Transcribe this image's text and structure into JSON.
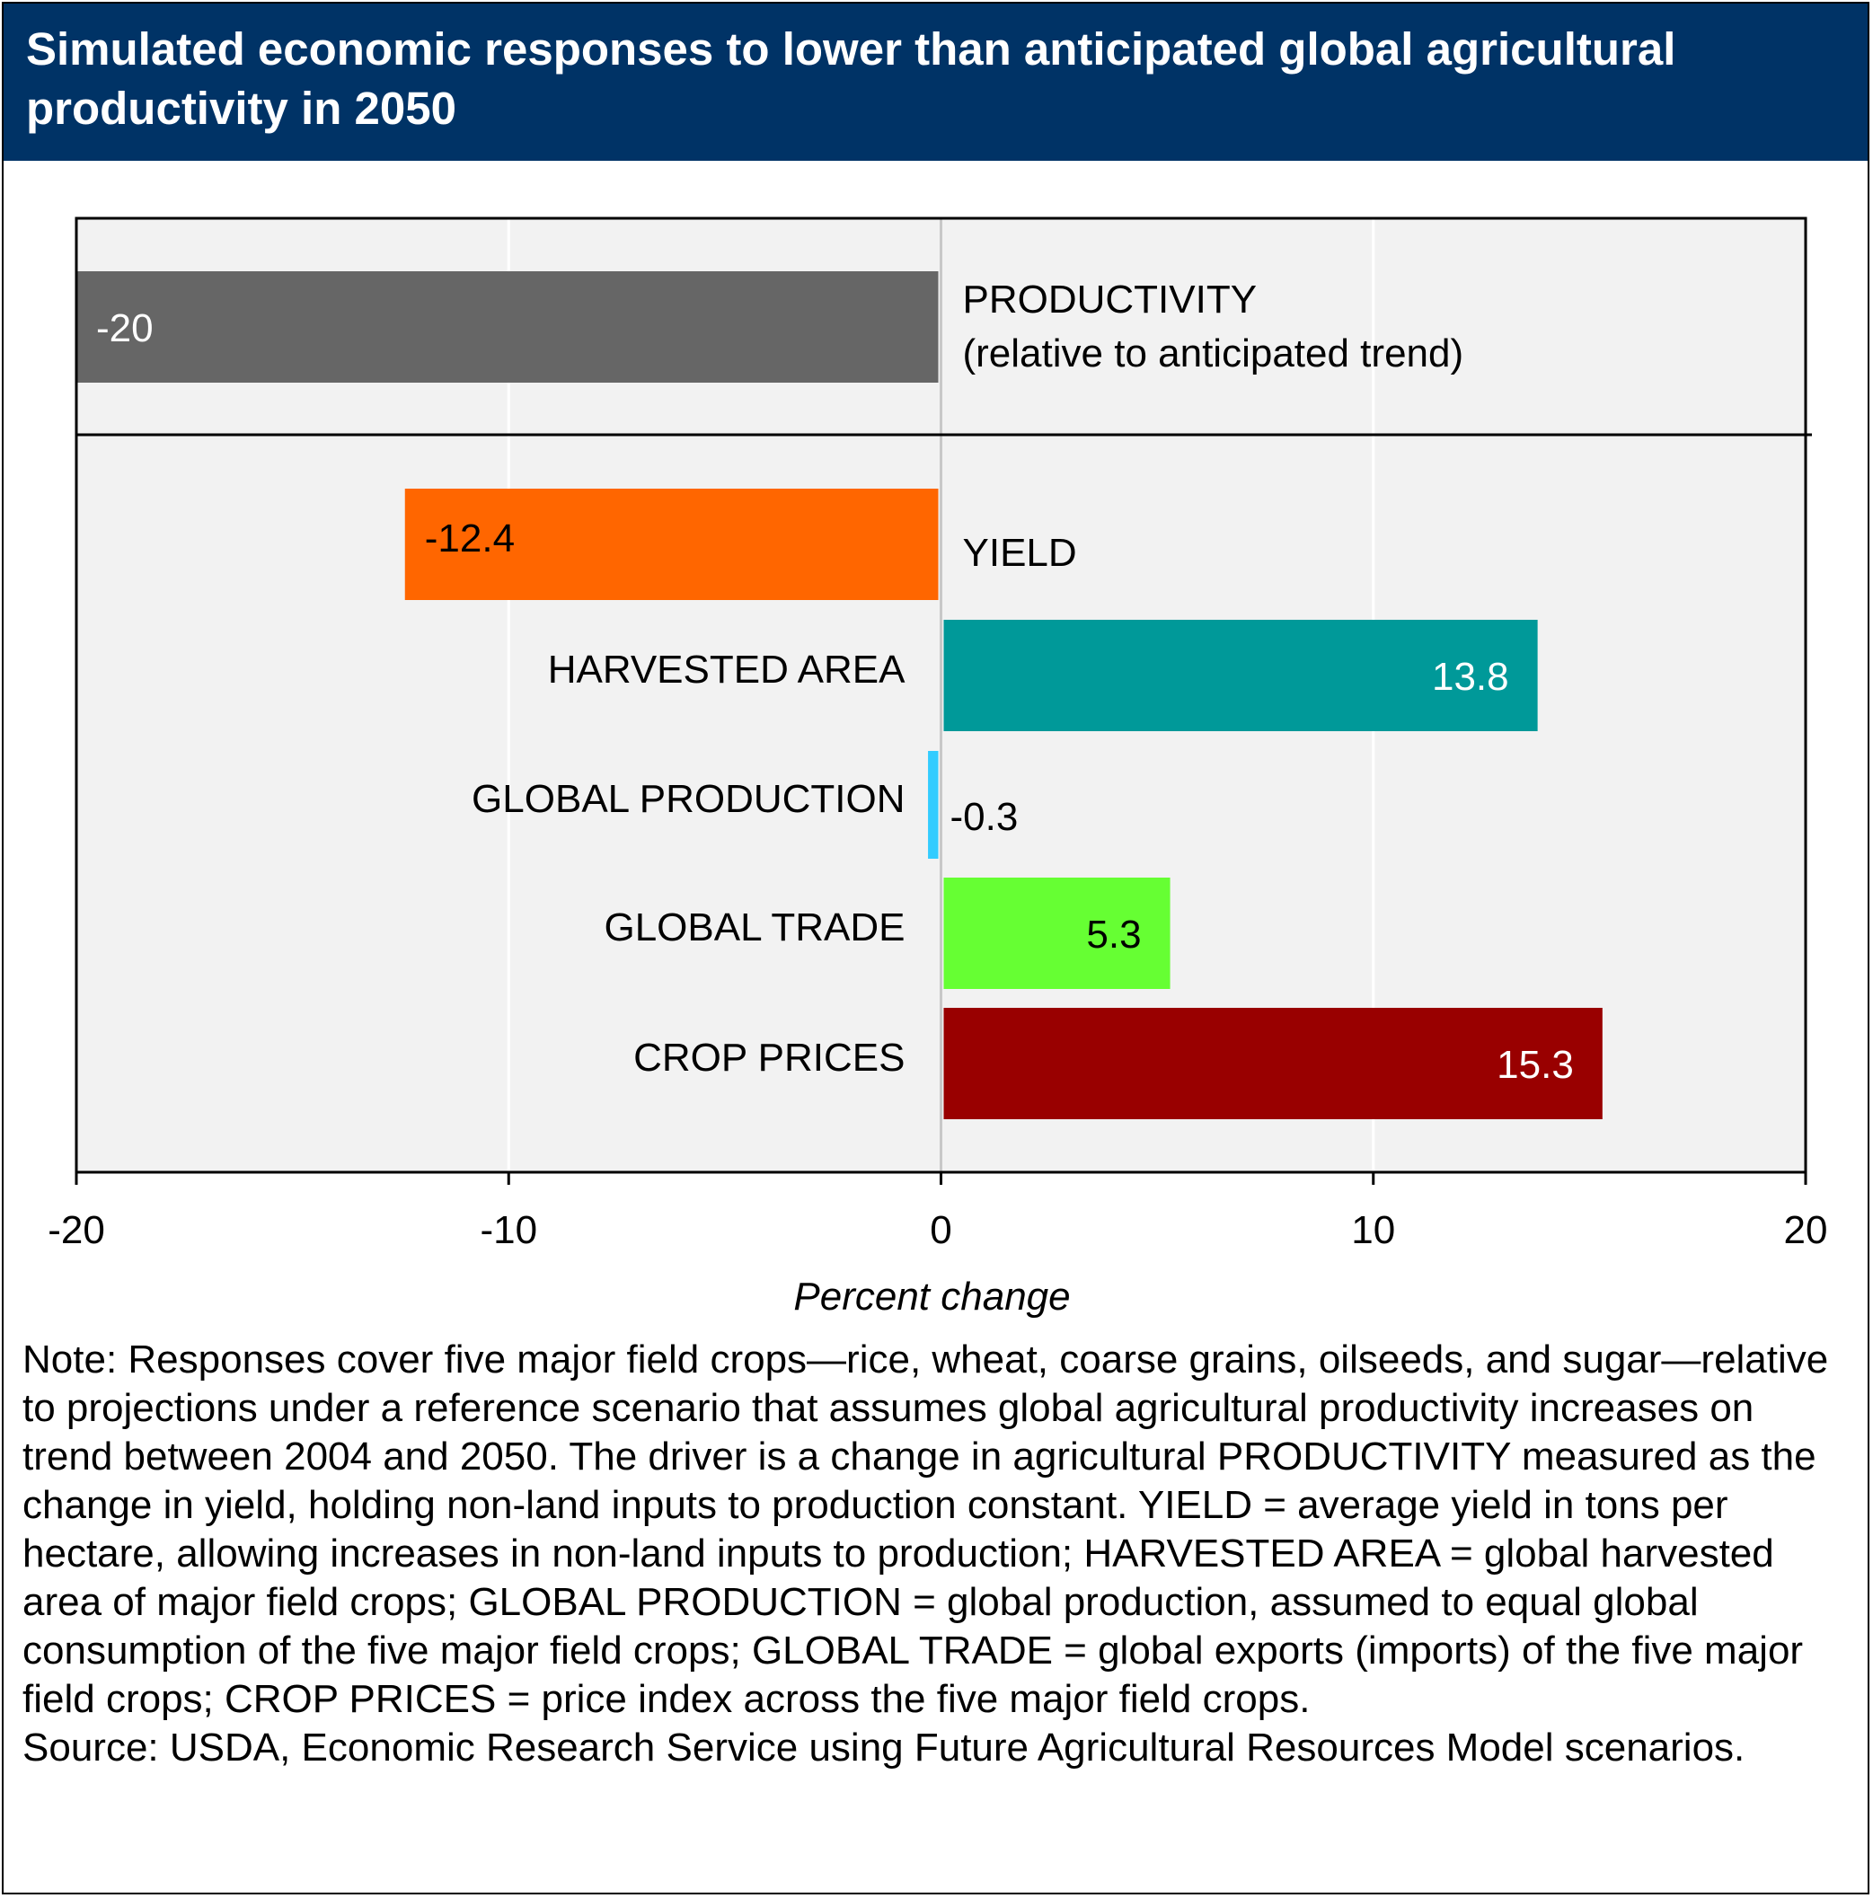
{
  "title": "Simulated economic responses to lower than anticipated global agricultural productivity in 2050",
  "note": "Note: Responses cover five major field crops—rice, wheat, coarse grains, oilseeds, and sugar—relative to projections under a reference scenario that assumes global agricultural productivity increases on trend between 2004 and 2050. The driver is a change in agricultural PRODUCTIVITY measured as the change in yield, holding non-land inputs to production constant. YIELD = average yield in tons per hectare, allowing increases in non-land inputs to production; HARVESTED AREA = global harvested area of major field crops; GLOBAL PRODUCTION = global production, assumed to equal global consumption of the five major field crops; GLOBAL TRADE = global exports (imports) of the five major field crops; CROP PRICES = price index across the five major field crops.",
  "source": "Source: USDA, Economic Research Service using Future Agricultural Resources Model scenarios.",
  "chart_data": {
    "type": "bar",
    "orientation": "horizontal",
    "xlabel": "Percent change",
    "xlim": [
      -20,
      20
    ],
    "xticks": [
      -20,
      -10,
      0,
      10,
      20
    ],
    "grid": true,
    "categories": [
      [
        "PRODUCTIVITY",
        "(relative to anticipated trend)"
      ],
      [
        "YIELD"
      ],
      [
        "HARVESTED AREA"
      ],
      [
        "GLOBAL PRODUCTION"
      ],
      [
        "GLOBAL TRADE"
      ],
      [
        "CROP PRICES"
      ]
    ],
    "values": [
      -20,
      -12.4,
      13.8,
      -0.3,
      5.3,
      15.3
    ],
    "value_labels": [
      "-20",
      "-12.4",
      "13.8",
      "-0.3",
      "5.3",
      "15.3"
    ],
    "colors": [
      "#666666",
      "#ff6600",
      "#009999",
      "#33ccff",
      "#66ff33",
      "#990000"
    ],
    "label_colors": [
      "#ffffff",
      "#000000",
      "#ffffff",
      "#000000",
      "#000000",
      "#ffffff"
    ],
    "background": "#f2f2f2",
    "gridline_color": "#ffffff"
  }
}
